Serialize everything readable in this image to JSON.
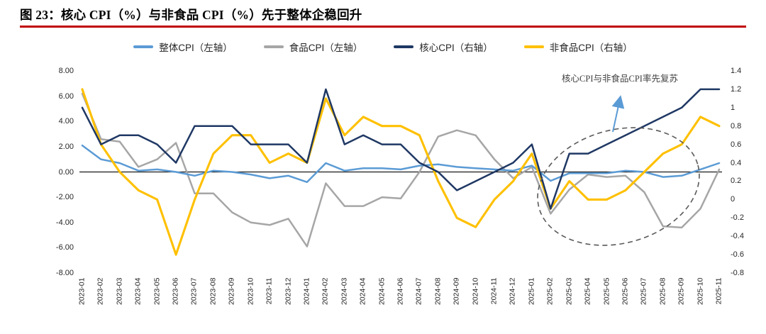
{
  "page": {
    "title": "图 23：核心 CPI（%）与非食品 CPI（%）先于整体企稳回升",
    "accent_color": "#C00000"
  },
  "chart_data": {
    "type": "line",
    "title": "核心 CPI（%）与非食品 CPI（%）先于整体企稳回升",
    "legend_position": "top",
    "grid": false,
    "categories": [
      "2023-01",
      "2023-02",
      "2023-03",
      "2023-04",
      "2023-05",
      "2023-06",
      "2023-07",
      "2023-08",
      "2023-09",
      "2023-10",
      "2023-11",
      "2023-12",
      "2024-01",
      "2024-02",
      "2024-03",
      "2024-04",
      "2024-05",
      "2024-06",
      "2024-07",
      "2024-08",
      "2024-09",
      "2024-10",
      "2024-11",
      "2024-12",
      "2025-01",
      "2025-02",
      "2025-03",
      "2025-04",
      "2025-05",
      "2025-06",
      "2025-07",
      "2025-08",
      "2025-09",
      "2025-10",
      "2025-11"
    ],
    "axes": {
      "left": {
        "range": [
          -8,
          8
        ],
        "ticks": [
          "8.00",
          "6.00",
          "4.00",
          "2.00",
          "0.00",
          "-2.00",
          "-4.00",
          "-6.00",
          "-8.00"
        ]
      },
      "right": {
        "range": [
          -0.8,
          1.4
        ],
        "ticks": [
          "1.4",
          "1.2",
          "1",
          "0.8",
          "0.6",
          "0.4",
          "0.2",
          "0",
          "-0.2",
          "-0.4",
          "-0.6",
          "-0.8"
        ]
      }
    },
    "series": [
      {
        "name": "整体CPI（左轴）",
        "axis": "left",
        "color": "#5B9BD5",
        "values": [
          2.1,
          1.0,
          0.7,
          0.1,
          0.2,
          0.0,
          -0.3,
          0.1,
          0.0,
          -0.2,
          -0.5,
          -0.3,
          -0.8,
          0.7,
          0.1,
          0.3,
          0.3,
          0.2,
          0.5,
          0.6,
          0.4,
          0.3,
          0.2,
          0.1,
          0.5,
          -0.7,
          -0.1,
          -0.1,
          -0.1,
          0.1,
          0.0,
          -0.4,
          -0.3,
          0.2,
          0.7
        ]
      },
      {
        "name": "食品CPI（左轴）",
        "axis": "left",
        "color": "#A6A6A6",
        "values": [
          6.2,
          2.6,
          2.4,
          0.4,
          1.0,
          2.3,
          -1.7,
          -1.7,
          -3.2,
          -4.0,
          -4.2,
          -3.7,
          -5.9,
          -0.9,
          -2.7,
          -2.7,
          -2.0,
          -2.1,
          0.0,
          2.8,
          3.3,
          2.9,
          1.0,
          -0.5,
          0.4,
          -3.3,
          -1.4,
          -0.2,
          -0.4,
          -0.3,
          -1.6,
          -4.3,
          -4.4,
          -2.9,
          0.2
        ]
      },
      {
        "name": "核心CPI（右轴）",
        "axis": "right",
        "color": "#1F3864",
        "values": [
          1.0,
          0.6,
          0.7,
          0.7,
          0.6,
          0.4,
          0.8,
          0.8,
          0.8,
          0.6,
          0.6,
          0.6,
          0.4,
          1.2,
          0.6,
          0.7,
          0.6,
          0.6,
          0.4,
          0.3,
          0.1,
          0.2,
          0.3,
          0.4,
          0.6,
          -0.1,
          0.5,
          0.5,
          0.6,
          0.7,
          0.8,
          0.9,
          1.0,
          1.2,
          1.2
        ]
      },
      {
        "name": "非食品CPI（右轴）",
        "axis": "right",
        "color": "#FFC000",
        "values": [
          1.2,
          0.6,
          0.3,
          0.1,
          0.0,
          -0.6,
          0.0,
          0.5,
          0.7,
          0.7,
          0.4,
          0.5,
          0.4,
          1.1,
          0.7,
          0.9,
          0.8,
          0.8,
          0.7,
          0.2,
          -0.2,
          -0.3,
          0.0,
          0.2,
          0.5,
          -0.1,
          0.2,
          0.0,
          0.0,
          0.1,
          0.3,
          0.5,
          0.6,
          0.9,
          0.8
        ]
      }
    ],
    "annotation": {
      "text": "核心CPI与非食品CPI率先复苏",
      "arrow_color": "#5B9BD5",
      "ellipse_color": "#595959"
    }
  }
}
